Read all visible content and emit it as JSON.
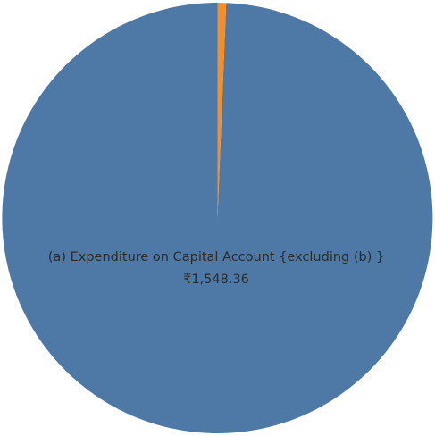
{
  "chart_data": {
    "type": "pie",
    "slices": [
      {
        "label": "(a) Expenditure on Capital Account {excluding (b) }",
        "value_text": "₹1,548.36",
        "value": 1548.36,
        "color": "#4e79a7",
        "label_color": "#2b2b2b",
        "show_label": true
      },
      {
        "label": "",
        "value_text": "",
        "value": 10,
        "color": "#f28e2b",
        "show_label": false
      }
    ],
    "start_angle_deg": 0,
    "direction": "counterclockwise"
  }
}
